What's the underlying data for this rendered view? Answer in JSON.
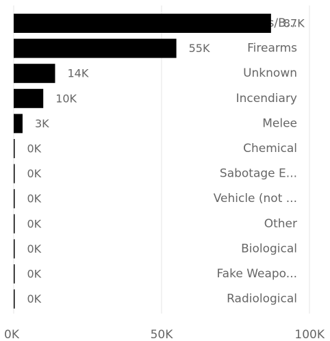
{
  "chart_data": {
    "type": "bar",
    "orientation": "horizontal",
    "categories": [
      "Explosives/B...",
      "Firearms",
      "Unknown",
      "Incendiary",
      "Melee",
      "Chemical",
      "Sabotage E...",
      "Vehicle (not ...",
      "Other",
      "Biological",
      "Fake Weapo...",
      "Radiological"
    ],
    "values": [
      87,
      55,
      14,
      10,
      3,
      0,
      0,
      0,
      0,
      0,
      0,
      0
    ],
    "value_labels": [
      "87K",
      "55K",
      "14K",
      "10K",
      "3K",
      "0K",
      "0K",
      "0K",
      "0K",
      "0K",
      "0K",
      "0K"
    ],
    "unit": "K",
    "xlim": [
      0,
      100
    ],
    "xticks": [
      0,
      50,
      100
    ],
    "xtick_labels": [
      "0K",
      "50K",
      "100K"
    ],
    "grid": true,
    "bar_color": "#000000",
    "label_color": "#666666",
    "grid_color": "#e6e6e6"
  }
}
